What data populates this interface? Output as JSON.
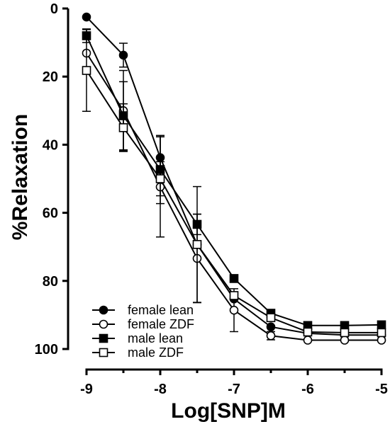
{
  "chart_data": {
    "type": "line",
    "xlabel": "Log[SNP]M",
    "ylabel": "%Relaxation",
    "xlim": [
      -9,
      -5
    ],
    "ylim": [
      0,
      100
    ],
    "y_inverted": true,
    "xticks": [
      "-9",
      "-8",
      "-7",
      "-6",
      "-5"
    ],
    "yticks": [
      "0",
      "20",
      "40",
      "60",
      "80",
      "100"
    ],
    "legend_position": "bottom-left",
    "x": [
      -9,
      -8.5,
      -8,
      -7.5,
      -7,
      -6.5,
      -6,
      -5.5,
      -5
    ],
    "series": [
      {
        "name": "female lean",
        "marker": "filled-circle",
        "values": [
          2.5,
          13.7,
          43.8,
          69.3,
          85.3,
          93.5,
          95.4,
          95.9,
          95.9
        ],
        "errors": [
          0,
          3.5,
          6.5,
          0,
          0,
          0,
          0,
          0,
          0
        ]
      },
      {
        "name": "female ZDF",
        "marker": "open-circle",
        "values": [
          13.1,
          30.0,
          52.4,
          73.4,
          88.6,
          96.1,
          97.4,
          97.4,
          97.4
        ],
        "errors": [
          0,
          11.8,
          14.7,
          13.0,
          6.3,
          1.2,
          0,
          0,
          0
        ]
      },
      {
        "name": "male lean",
        "marker": "filled-square",
        "values": [
          8.0,
          31.5,
          47.3,
          63.4,
          79.3,
          89.5,
          93.1,
          93.1,
          92.9
        ],
        "errors": [
          2.0,
          10.0,
          10.0,
          3.0,
          0,
          0,
          0,
          0,
          0
        ]
      },
      {
        "name": "male ZDF",
        "marker": "open-square",
        "values": [
          18.2,
          35.0,
          50.0,
          69.3,
          84.3,
          90.8,
          95.0,
          95.2,
          95.2
        ],
        "errors": [
          12.0,
          7.0,
          5.0,
          17.0,
          0,
          0,
          0,
          0,
          0
        ]
      }
    ]
  }
}
